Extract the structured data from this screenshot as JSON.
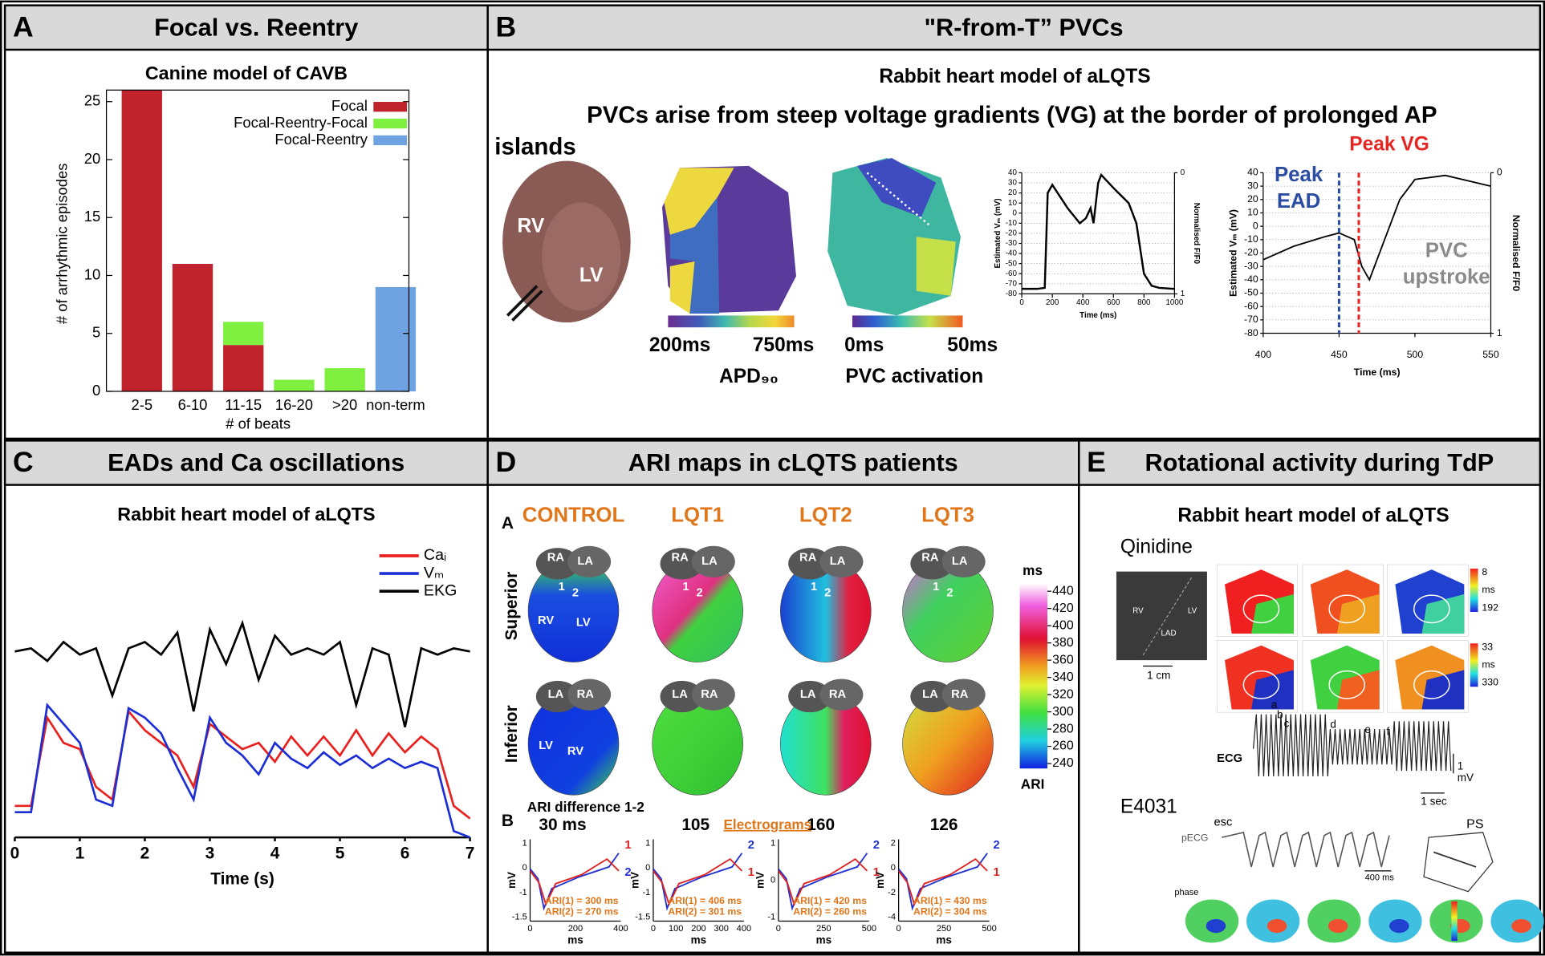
{
  "panels": [
    {
      "letter": "A",
      "title": "Focal vs. Reentry"
    },
    {
      "letter": "B",
      "title": "\"R-from-T” PVCs"
    },
    {
      "letter": "C",
      "title": "EADs and Ca oscillations"
    },
    {
      "letter": "D",
      "title": "ARI maps in cLQTS patients"
    },
    {
      "letter": "E",
      "title": "Rotational activity during TdP"
    }
  ],
  "chart_data": [
    {
      "type": "bar",
      "stacked": true,
      "title": "Canine model of CAVB",
      "categories": [
        "2-5",
        "6-10",
        "11-15",
        "16-20",
        ">20",
        "non-term"
      ],
      "series": [
        {
          "name": "Focal",
          "color": "#c0232c",
          "values": [
            26,
            11,
            4,
            0,
            0,
            0
          ]
        },
        {
          "name": "Focal-Reentry-Focal",
          "color": "#80f040",
          "values": [
            0,
            0,
            2,
            1,
            2,
            0
          ]
        },
        {
          "name": "Focal-Reentry",
          "color": "#6ea2e0",
          "values": [
            0,
            0,
            0,
            0,
            0,
            9
          ]
        }
      ],
      "ylim": [
        0,
        26
      ],
      "yticks": [
        0,
        5,
        10,
        15,
        20,
        25
      ],
      "xlabel": "# of beats",
      "ylabel": "# of arrhythmic episodes",
      "legend": "upper right",
      "grid": false
    },
    {
      "type": "line",
      "x": [
        0,
        100,
        150,
        170,
        200,
        300,
        380,
        420,
        450,
        470,
        500,
        520,
        600,
        700,
        750,
        800,
        850,
        900,
        1000
      ],
      "series": [
        {
          "color": "#000000",
          "values": [
            -75,
            -75,
            -74,
            20,
            28,
            5,
            -10,
            -5,
            5,
            -10,
            30,
            38,
            25,
            10,
            -10,
            -60,
            -72,
            -74,
            -75
          ]
        }
      ],
      "xlim": [
        0,
        1000
      ],
      "xticks": [
        0,
        200,
        400,
        600,
        800,
        1000
      ],
      "ylim": [
        -80,
        40
      ],
      "yticks": [
        -80,
        -70,
        -60,
        -50,
        -40,
        -30,
        -20,
        -10,
        0,
        10,
        20,
        30,
        40
      ],
      "y2lim": [
        1,
        0
      ],
      "y2ticks": [
        0,
        1
      ],
      "xlabel": "Time (ms)",
      "ylabel": "Estimated Vₘ (mV)",
      "y2label": "Normalised F/F0",
      "grid": true
    },
    {
      "type": "line",
      "x": [
        400,
        420,
        440,
        450,
        460,
        465,
        470,
        480,
        490,
        500,
        520,
        550
      ],
      "series": [
        {
          "color": "#000000",
          "values": [
            -25,
            -15,
            -8,
            -5,
            -10,
            -30,
            -40,
            -10,
            20,
            35,
            38,
            30
          ]
        }
      ],
      "xlim": [
        400,
        550
      ],
      "xticks": [
        400,
        450,
        500,
        550
      ],
      "ylim": [
        -80,
        40
      ],
      "yticks": [
        -80,
        -70,
        -60,
        -50,
        -40,
        -30,
        -20,
        -10,
        0,
        10,
        20,
        30,
        40
      ],
      "y2lim": [
        1,
        0
      ],
      "y2ticks": [
        0,
        1
      ],
      "xlabel": "Time (ms)",
      "ylabel": "Estimated Vₘ (mV)",
      "y2label": "Normalised F/F0",
      "grid": true,
      "annotations": [
        {
          "text": [
            "Peak",
            "EAD"
          ],
          "x": 450,
          "color": "#2b4ea2"
        },
        {
          "text": [
            "Peak VG"
          ],
          "x": 463,
          "color": "#e52521"
        },
        {
          "text": [
            "PVC",
            "upstroke"
          ],
          "color": "#8a8a8a"
        }
      ]
    },
    {
      "type": "line",
      "title": "Rabbit heart model of aLQTS",
      "x": [
        0,
        0.25,
        0.5,
        0.75,
        1,
        1.25,
        1.5,
        1.75,
        2,
        2.25,
        2.5,
        2.75,
        3,
        3.25,
        3.5,
        3.75,
        4,
        4.25,
        4.5,
        4.75,
        5,
        5.25,
        5.5,
        5.75,
        6,
        6.25,
        6.5,
        6.75,
        7
      ],
      "series": [
        {
          "name": "Caᵢ",
          "color": "#e8201e",
          "values": [
            0.1,
            0.1,
            0.38,
            0.3,
            0.28,
            0.16,
            0.12,
            0.4,
            0.34,
            0.3,
            0.26,
            0.16,
            0.36,
            0.32,
            0.28,
            0.3,
            0.24,
            0.32,
            0.26,
            0.32,
            0.26,
            0.34,
            0.26,
            0.33,
            0.27,
            0.32,
            0.28,
            0.1,
            0.06
          ]
        },
        {
          "name": "Vₘ",
          "color": "#1c2fd6",
          "values": [
            0.08,
            0.08,
            0.42,
            0.36,
            0.3,
            0.12,
            0.1,
            0.41,
            0.38,
            0.33,
            0.22,
            0.12,
            0.38,
            0.3,
            0.26,
            0.2,
            0.3,
            0.25,
            0.22,
            0.27,
            0.23,
            0.26,
            0.22,
            0.25,
            0.22,
            0.24,
            0.22,
            0.02,
            0.0
          ]
        },
        {
          "name": "EKG",
          "color": "#000000",
          "values": [
            0.59,
            0.6,
            0.56,
            0.62,
            0.58,
            0.6,
            0.45,
            0.6,
            0.62,
            0.58,
            0.65,
            0.4,
            0.66,
            0.55,
            0.68,
            0.5,
            0.64,
            0.58,
            0.6,
            0.58,
            0.62,
            0.42,
            0.6,
            0.58,
            0.35,
            0.6,
            0.58,
            0.6,
            0.59
          ]
        }
      ],
      "xlim": [
        0,
        7
      ],
      "xticks": [
        0,
        1,
        2,
        3,
        4,
        5,
        6,
        7
      ],
      "ylim": [
        0,
        1
      ],
      "xlabel": "Time (s)",
      "legend": "upper right",
      "grid": false
    }
  ],
  "panel_b": {
    "subtitle": "Rabbit heart model of aLQTS",
    "statement": [
      "PVCs arise from steep voltage gradients (VG) at the border of prolonged AP",
      "islands"
    ],
    "heart_labels": [
      "RV",
      "LV"
    ],
    "apd_map": {
      "min_label": "200ms",
      "max_label": "750ms",
      "title": "APD₉₀"
    },
    "activation_map": {
      "min_label": "0ms",
      "max_label": "50ms",
      "title": "PVC activation"
    }
  },
  "panel_d": {
    "section_a": "A",
    "columns": [
      "CONTROL",
      "LQT1",
      "LQT2",
      "LQT3"
    ],
    "rows": [
      "Superior",
      "Inferior"
    ],
    "superior_labels": [
      [
        "RA",
        "LA",
        "1",
        "2",
        "RV",
        "LV"
      ],
      [
        "RA",
        "LA",
        "1",
        "2"
      ],
      [
        "RA",
        "LA",
        "1",
        "2"
      ],
      [
        "RA",
        "LA",
        "1",
        "2"
      ]
    ],
    "inferior_labels": [
      [
        "LA",
        "RA",
        "LV",
        "RV"
      ],
      [
        "LA",
        "RA"
      ],
      [
        "LA",
        "RA"
      ],
      [
        "LA",
        "RA"
      ]
    ],
    "colorbar": {
      "unit": "ms",
      "title": "ARI",
      "ticks": [
        440,
        420,
        400,
        380,
        360,
        340,
        320,
        300,
        280,
        260,
        240
      ]
    },
    "section_b": "B",
    "ari_title": "ARI difference 1-2",
    "differences": [
      "30 ms",
      "105",
      "160",
      "126"
    ],
    "electrograms_label": "Electrograms",
    "electrograms": [
      {
        "ari": [
          "ARI(1) = 300 ms",
          "ARI(2) = 270 ms"
        ],
        "xticks": [
          "0",
          "200",
          "400"
        ],
        "yticks": [
          "1",
          "0",
          "-1",
          "-1.5"
        ],
        "xlabel": "ms",
        "ylabel": "mV",
        "traces": [
          "1",
          "2"
        ]
      },
      {
        "ari": [
          "ARI(1) = 406 ms",
          "ARI(2) = 301 ms"
        ],
        "xticks": [
          "0",
          "100",
          "200",
          "300",
          "400"
        ],
        "yticks": [
          "1",
          "0",
          "-1",
          "-1.5"
        ],
        "xlabel": "ms",
        "ylabel": "mV",
        "traces": [
          "2",
          "1"
        ]
      },
      {
        "ari": [
          "ARI(1) = 420 ms",
          "ARI(2) = 260 ms"
        ],
        "xticks": [
          "0",
          "250",
          "500"
        ],
        "yticks": [
          "1",
          "0",
          "-1"
        ],
        "xlabel": "ms",
        "ylabel": "mV",
        "traces": [
          "2",
          "1"
        ]
      },
      {
        "ari": [
          "ARI(1) = 430 ms",
          "ARI(2) = 304 ms"
        ],
        "xticks": [
          "0",
          "250",
          "500"
        ],
        "yticks": [
          "2",
          "0",
          "-2",
          "-4"
        ],
        "xlabel": "ms",
        "ylabel": "mV",
        "traces": [
          "2",
          "1"
        ]
      }
    ]
  },
  "panel_e": {
    "subtitle": "Rabbit heart model of aLQTS",
    "drug1": "Qinidine",
    "photo_labels": [
      "RV",
      "LV",
      "LAD"
    ],
    "scale": "1 cm",
    "map_labels": [
      "a",
      "b",
      "c",
      "d",
      "e",
      "f"
    ],
    "scale1": [
      "8",
      "ms",
      "192"
    ],
    "scale2": [
      "33",
      "ms",
      "330"
    ],
    "ecg_points": [
      "a",
      "b",
      "c",
      "d",
      "e",
      "f"
    ],
    "ecg_label": "ECG",
    "ecg_scale": [
      "1",
      "mV"
    ],
    "time_scale": "1 sec",
    "drug2": "E4031",
    "esc": "esc",
    "pecg": "pECG",
    "pecg_scale": "400 ms",
    "ps": "PS",
    "phase": "phase"
  }
}
